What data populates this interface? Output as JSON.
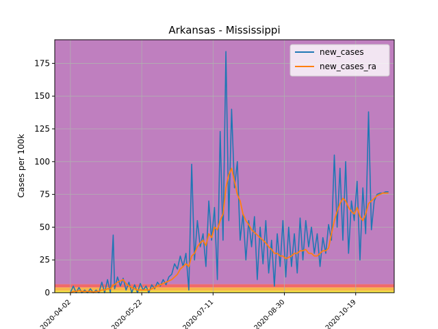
{
  "chart_data": {
    "type": "line",
    "title": "Arkansas - Mississippi",
    "xlabel": "",
    "ylabel": "Cases per 100k",
    "xlim": [
      "2020-03-22",
      "2020-11-15"
    ],
    "ylim": [
      0,
      193
    ],
    "yticks": [
      0,
      25,
      50,
      75,
      100,
      125,
      150,
      175
    ],
    "xticks": [
      "2020-04-02",
      "2020-05-22",
      "2020-07-11",
      "2020-08-30",
      "2020-10-19"
    ],
    "grid": true,
    "legend_position": "top-right",
    "background_bands": [
      {
        "from": 0,
        "to": 1.5,
        "color": "#f5e342"
      },
      {
        "from": 1.5,
        "to": 4,
        "color": "#f7b54a"
      },
      {
        "from": 4,
        "to": 6.5,
        "color": "#f06a6a"
      },
      {
        "from": 6.5,
        "to": 193,
        "color": "#bf7fbf"
      }
    ],
    "series": [
      {
        "name": "new_cases",
        "color": "#1f77b4",
        "x": [
          "2020-04-02",
          "2020-04-04",
          "2020-04-06",
          "2020-04-08",
          "2020-04-10",
          "2020-04-12",
          "2020-04-14",
          "2020-04-16",
          "2020-04-18",
          "2020-04-20",
          "2020-04-22",
          "2020-04-24",
          "2020-04-26",
          "2020-04-28",
          "2020-04-30",
          "2020-05-02",
          "2020-05-03",
          "2020-05-05",
          "2020-05-07",
          "2020-05-09",
          "2020-05-11",
          "2020-05-13",
          "2020-05-15",
          "2020-05-17",
          "2020-05-19",
          "2020-05-21",
          "2020-05-23",
          "2020-05-25",
          "2020-05-27",
          "2020-05-29",
          "2020-05-31",
          "2020-06-02",
          "2020-06-04",
          "2020-06-06",
          "2020-06-08",
          "2020-06-10",
          "2020-06-12",
          "2020-06-14",
          "2020-06-16",
          "2020-06-18",
          "2020-06-20",
          "2020-06-22",
          "2020-06-24",
          "2020-06-26",
          "2020-06-28",
          "2020-06-30",
          "2020-07-02",
          "2020-07-04",
          "2020-07-06",
          "2020-07-08",
          "2020-07-10",
          "2020-07-12",
          "2020-07-14",
          "2020-07-16",
          "2020-07-18",
          "2020-07-20",
          "2020-07-22",
          "2020-07-24",
          "2020-07-26",
          "2020-07-28",
          "2020-07-30",
          "2020-08-01",
          "2020-08-03",
          "2020-08-05",
          "2020-08-07",
          "2020-08-09",
          "2020-08-11",
          "2020-08-13",
          "2020-08-15",
          "2020-08-17",
          "2020-08-19",
          "2020-08-21",
          "2020-08-23",
          "2020-08-25",
          "2020-08-27",
          "2020-08-29",
          "2020-08-31",
          "2020-09-02",
          "2020-09-04",
          "2020-09-06",
          "2020-09-08",
          "2020-09-10",
          "2020-09-12",
          "2020-09-14",
          "2020-09-16",
          "2020-09-18",
          "2020-09-20",
          "2020-09-22",
          "2020-09-24",
          "2020-09-26",
          "2020-09-28",
          "2020-09-30",
          "2020-10-02",
          "2020-10-04",
          "2020-10-06",
          "2020-10-08",
          "2020-10-10",
          "2020-10-12",
          "2020-10-14",
          "2020-10-16",
          "2020-10-18",
          "2020-10-20",
          "2020-10-22",
          "2020-10-24",
          "2020-10-26",
          "2020-10-28",
          "2020-10-30",
          "2020-11-01",
          "2020-11-03",
          "2020-11-05",
          "2020-11-07",
          "2020-11-09",
          "2020-11-11"
        ],
        "values": [
          0,
          5,
          0,
          4,
          0,
          2,
          0,
          3,
          0,
          2,
          0,
          8,
          0,
          10,
          0,
          44,
          3,
          12,
          5,
          11,
          2,
          8,
          0,
          6,
          0,
          7,
          2,
          5,
          0,
          6,
          3,
          8,
          5,
          10,
          6,
          12,
          14,
          22,
          18,
          28,
          20,
          30,
          2,
          98,
          25,
          55,
          35,
          45,
          20,
          70,
          40,
          65,
          10,
          123,
          40,
          184,
          55,
          140,
          80,
          100,
          40,
          60,
          25,
          55,
          35,
          58,
          10,
          50,
          22,
          55,
          15,
          40,
          5,
          45,
          20,
          55,
          12,
          50,
          20,
          45,
          15,
          57,
          25,
          55,
          35,
          50,
          30,
          45,
          20,
          42,
          30,
          52,
          40,
          105,
          50,
          95,
          40,
          100,
          30,
          70,
          55,
          85,
          25,
          80,
          45,
          138,
          48,
          70,
          75,
          76,
          76,
          77,
          77
        ],
        "ra": [
          0,
          1,
          1,
          1.5,
          1,
          1,
          1,
          1,
          0.5,
          1,
          1,
          2,
          2,
          3,
          3,
          6,
          6,
          8,
          9,
          10,
          7,
          5,
          4,
          3,
          2,
          2,
          2,
          2,
          2,
          3,
          4,
          5,
          6,
          7,
          8,
          9,
          10,
          12,
          14,
          18,
          20,
          22,
          20,
          28,
          30,
          35,
          38,
          40,
          36,
          45,
          42,
          50,
          48,
          55,
          60,
          80,
          90,
          95,
          85,
          75,
          70,
          60,
          55,
          52,
          48,
          46,
          44,
          42,
          40,
          38,
          35,
          33,
          30,
          30,
          28,
          28,
          26,
          27,
          28,
          30,
          30,
          32,
          32,
          33,
          30,
          30,
          28,
          28,
          30,
          32,
          32,
          34,
          45,
          55,
          62,
          68,
          72,
          70,
          65,
          62,
          60,
          65,
          58,
          55,
          60,
          68,
          70,
          72,
          74,
          75,
          76,
          76,
          76
        ]
      },
      {
        "name": "new_cases_ra",
        "color": "#ff7f0e"
      }
    ]
  }
}
